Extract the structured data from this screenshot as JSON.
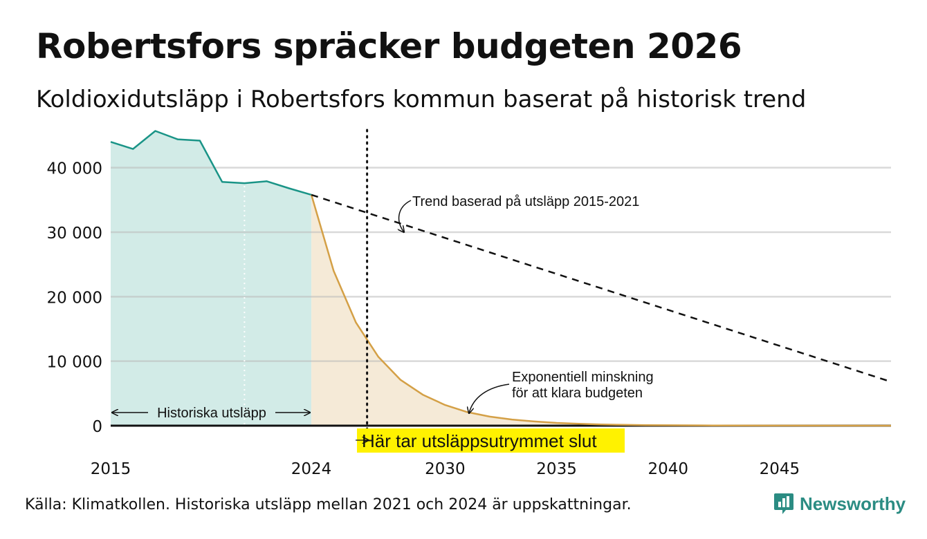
{
  "header": {
    "title": "Robertsfors spräcker budgeten 2026",
    "subtitle": "Koldioxidutsläpp i Robertsfors kommun baserat på historisk trend"
  },
  "footer": {
    "source": "Källa: Klimatkollen. Historiska utsläpp mellan 2021 och 2024 är uppskattningar.",
    "brand": "Newsworthy"
  },
  "chart_data": {
    "type": "area",
    "title": "Robertsfors spräcker budgeten 2026",
    "subtitle": "Koldioxidutsläpp i Robertsfors kommun baserat på historisk trend",
    "xlabel": "",
    "ylabel": "",
    "xlim": [
      2015,
      2050
    ],
    "ylim": [
      0,
      45000
    ],
    "grid": true,
    "x_ticks": [
      {
        "value": 2015,
        "label": "2015"
      },
      {
        "value": 2024,
        "label": "2024"
      },
      {
        "value": 2030,
        "label": "2030"
      },
      {
        "value": 2035,
        "label": "2035"
      },
      {
        "value": 2040,
        "label": "2040"
      },
      {
        "value": 2045,
        "label": "2045"
      }
    ],
    "y_ticks": [
      {
        "value": 0,
        "label": "0"
      },
      {
        "value": 10000,
        "label": "10 000"
      },
      {
        "value": 20000,
        "label": "20 000"
      },
      {
        "value": 30000,
        "label": "30 000"
      },
      {
        "value": 40000,
        "label": "40 000"
      }
    ],
    "series": [
      {
        "name": "Historiska utsläpp",
        "style": "area",
        "color": "#1a9487",
        "fill": "#d2ebe7",
        "x": [
          2015,
          2016,
          2017,
          2018,
          2019,
          2020,
          2021,
          2022,
          2023,
          2024
        ],
        "y": [
          44000,
          42900,
          45700,
          44400,
          44200,
          37800,
          37600,
          37900,
          36800,
          35800
        ]
      },
      {
        "name": "Exponentiell minskning för att klara budgeten",
        "style": "area",
        "color": "#d4a046",
        "fill": "#f5ead7",
        "x": [
          2024,
          2025,
          2026,
          2027,
          2028,
          2029,
          2030,
          2031,
          2032,
          2033,
          2034,
          2035,
          2036,
          2037,
          2038,
          2039,
          2040,
          2042,
          2045,
          2050
        ],
        "y": [
          35800,
          24000,
          16000,
          10700,
          7100,
          4800,
          3200,
          2100,
          1400,
          950,
          650,
          430,
          290,
          190,
          130,
          90,
          60,
          30,
          10,
          0
        ]
      },
      {
        "name": "Trend baserad på utsläpp 2015-2021",
        "style": "dashed",
        "color": "#111111",
        "x": [
          2024,
          2050
        ],
        "y": [
          35800,
          6800
        ]
      }
    ],
    "markers": {
      "budget_end_year": 2026.5,
      "historic_estimate_start": 2021
    },
    "annotations": {
      "historic": "Historiska utsläpp",
      "trend": "Trend baserad på utsläpp 2015-2021",
      "exp_line1": "Exponentiell minskning",
      "exp_line2": "för att klara budgeten",
      "budget_end": "Här tar utsläppsutrymmet slut",
      "budget_end_highlight": "#fff200"
    }
  }
}
